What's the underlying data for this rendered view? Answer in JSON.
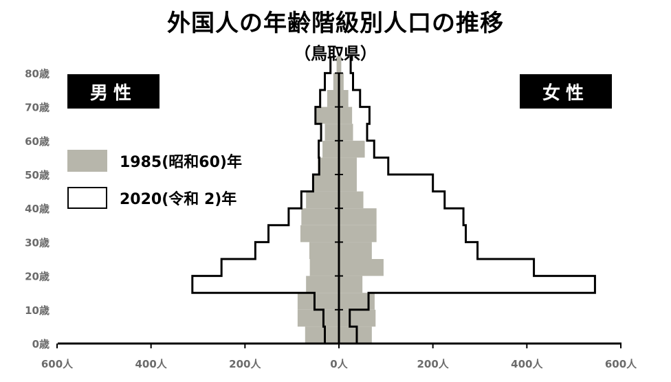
{
  "title": "外国人の年齢階級別人口の推移",
  "subtitle": "（鳥取県）",
  "labels": {
    "male": "男性",
    "female": "女性"
  },
  "colors": {
    "series_1985": "#b7b6ab",
    "series_2020_outline": "#000000",
    "axis": "#000000",
    "tick_label": "#6b6b6b"
  },
  "chart_data": {
    "type": "bar",
    "subtype": "population-pyramid",
    "title": "外国人の年齢階級別人口の推移",
    "subtitle": "（鳥取県）",
    "age_groups": [
      "0-4",
      "5-9",
      "10-14",
      "15-19",
      "20-24",
      "25-29",
      "30-34",
      "35-39",
      "40-44",
      "45-49",
      "50-54",
      "55-59",
      "60-64",
      "65-69",
      "70-74",
      "75-79",
      "80-84"
    ],
    "y_ticks": [
      "0歳",
      "10歳",
      "20歳",
      "30歳",
      "40歳",
      "50歳",
      "60歳",
      "70歳",
      "80歳"
    ],
    "x_ticks": [
      "600人",
      "400人",
      "200人",
      "0人",
      "200人",
      "400人",
      "600人"
    ],
    "xlim": [
      -600,
      600
    ],
    "series": [
      {
        "name": "1985(昭和60)年",
        "style": "filled",
        "male": [
          72,
          88,
          88,
          70,
          62,
          63,
          82,
          80,
          70,
          55,
          45,
          35,
          30,
          48,
          25,
          12,
          5
        ],
        "female": [
          70,
          78,
          76,
          50,
          95,
          70,
          80,
          80,
          52,
          38,
          38,
          55,
          30,
          28,
          20,
          10,
          5
        ]
      },
      {
        "name": "2020(令和 2)年",
        "style": "outline",
        "male": [
          30,
          33,
          52,
          312,
          250,
          178,
          150,
          107,
          80,
          55,
          42,
          43,
          38,
          50,
          40,
          30,
          18
        ],
        "female": [
          38,
          23,
          63,
          545,
          415,
          295,
          270,
          265,
          225,
          200,
          105,
          75,
          60,
          65,
          45,
          30,
          25
        ]
      }
    ],
    "legend": [
      "1985(昭和60)年",
      "2020(令和 2)年"
    ],
    "legend_position": "left",
    "grid": false
  }
}
